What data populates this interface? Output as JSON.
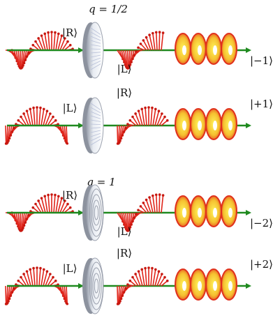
{
  "groups": [
    {
      "q_label": "q = 1/2",
      "rows": [
        {
          "input": "|R⟩",
          "output": "|L⟩",
          "oam": "|−1⟩"
        },
        {
          "input": "|L⟩",
          "output": "|R⟩",
          "oam": "|+1⟩"
        }
      ]
    },
    {
      "q_label": "q = 1",
      "rows": [
        {
          "input": "|R⟩",
          "output": "|L⟩",
          "oam": "|−2⟩"
        },
        {
          "input": "|L⟩",
          "output": "|R⟩",
          "oam": "|+2⟩"
        }
      ]
    }
  ]
}
